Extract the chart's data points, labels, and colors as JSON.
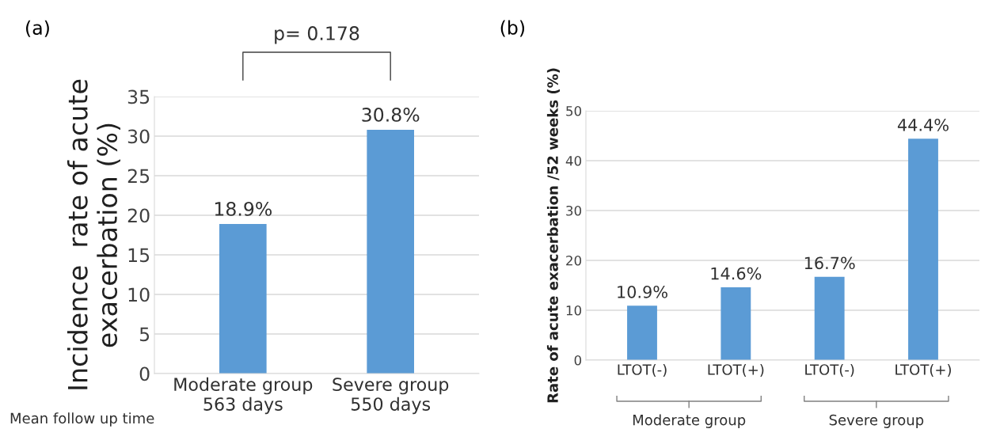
{
  "chart_data": [
    {
      "type": "bar",
      "title": "(a)",
      "ylabel": "Incidence  rate of acute\nexacerbation (%)",
      "categories": [
        "Moderate group\n563 days",
        "Severe group\n550 days"
      ],
      "values": [
        18.9,
        30.8
      ],
      "color": "#5b9bd5",
      "value_labels": [
        "18.9%",
        "30.8%"
      ],
      "ylim": [
        0,
        35
      ],
      "yticks": [
        0,
        5,
        10,
        15,
        20,
        25,
        30,
        35
      ],
      "grid": "y",
      "annotations": [
        "p= 0.178",
        "Mean follow up time"
      ]
    },
    {
      "type": "bar",
      "title": "(b)",
      "ylabel": "Rate of acute exacerbation /52 weeks (%)",
      "categories": [
        "LTOT(-)",
        "LTOT(+)",
        "LTOT(-)",
        "LTOT(+)"
      ],
      "values": [
        10.9,
        14.6,
        16.7,
        44.4
      ],
      "color": "#5b9bd5",
      "value_labels": [
        "10.9%",
        "14.6%",
        "16.7%",
        "44.4%"
      ],
      "ylim": [
        0,
        50
      ],
      "yticks": [
        0,
        10,
        20,
        30,
        40,
        50
      ],
      "grid": "y",
      "annotations": [
        "Moderate group",
        "Severe group"
      ]
    }
  ]
}
